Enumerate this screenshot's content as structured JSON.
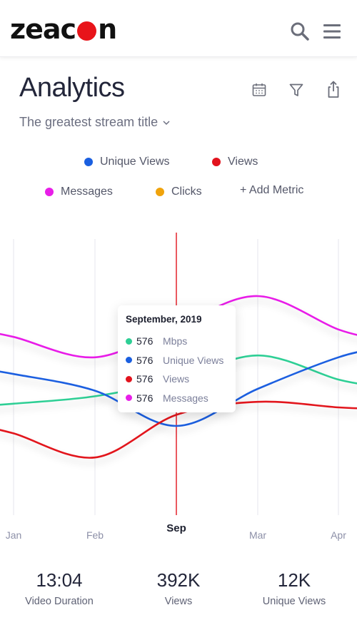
{
  "header": {
    "logo_text_left": "zeac",
    "logo_text_right": "n",
    "brand_color": "#e8141a"
  },
  "page": {
    "title": "Analytics",
    "stream_title": "The greatest stream title"
  },
  "legend": [
    {
      "label": "Unique Views",
      "color": "#1a5fe0"
    },
    {
      "label": "Views",
      "color": "#e2131d"
    },
    {
      "label": "Messages",
      "color": "#e81ee8"
    },
    {
      "label": "Clicks",
      "color": "#f0a30c"
    }
  ],
  "add_metric_label": "+ Add Metric",
  "chart_data": {
    "type": "line",
    "categories": [
      "Jan",
      "Feb",
      "Sep",
      "Mar",
      "Apr"
    ],
    "highlighted_category": "Sep",
    "grid": "vertical",
    "series": [
      {
        "name": "Mbps",
        "color": "#2ecf95",
        "values": [
          0.42,
          0.46,
          0.55,
          0.68,
          0.55
        ]
      },
      {
        "name": "Unique Views",
        "color": "#1a5fe0",
        "values": [
          0.58,
          0.49,
          0.3,
          0.5,
          0.67
        ]
      },
      {
        "name": "Views",
        "color": "#e2131d",
        "values": [
          0.26,
          0.13,
          0.36,
          0.43,
          0.4
        ]
      },
      {
        "name": "Messages",
        "color": "#e81ee8",
        "values": [
          0.78,
          0.67,
          0.84,
          1.0,
          0.82
        ]
      }
    ]
  },
  "tooltip": {
    "title": "September, 2019",
    "rows": [
      {
        "value": "576",
        "label": "Mbps",
        "color": "#2ecf95"
      },
      {
        "value": "576",
        "label": "Unique Views",
        "color": "#1a5fe0"
      },
      {
        "value": "576",
        "label": "Views",
        "color": "#e2131d"
      },
      {
        "value": "576",
        "label": "Messages",
        "color": "#e81ee8"
      }
    ]
  },
  "stats": [
    {
      "value": "13:04",
      "label": "Video Duration"
    },
    {
      "value": "392K",
      "label": "Views"
    },
    {
      "value": "12K",
      "label": "Unique Views"
    }
  ]
}
